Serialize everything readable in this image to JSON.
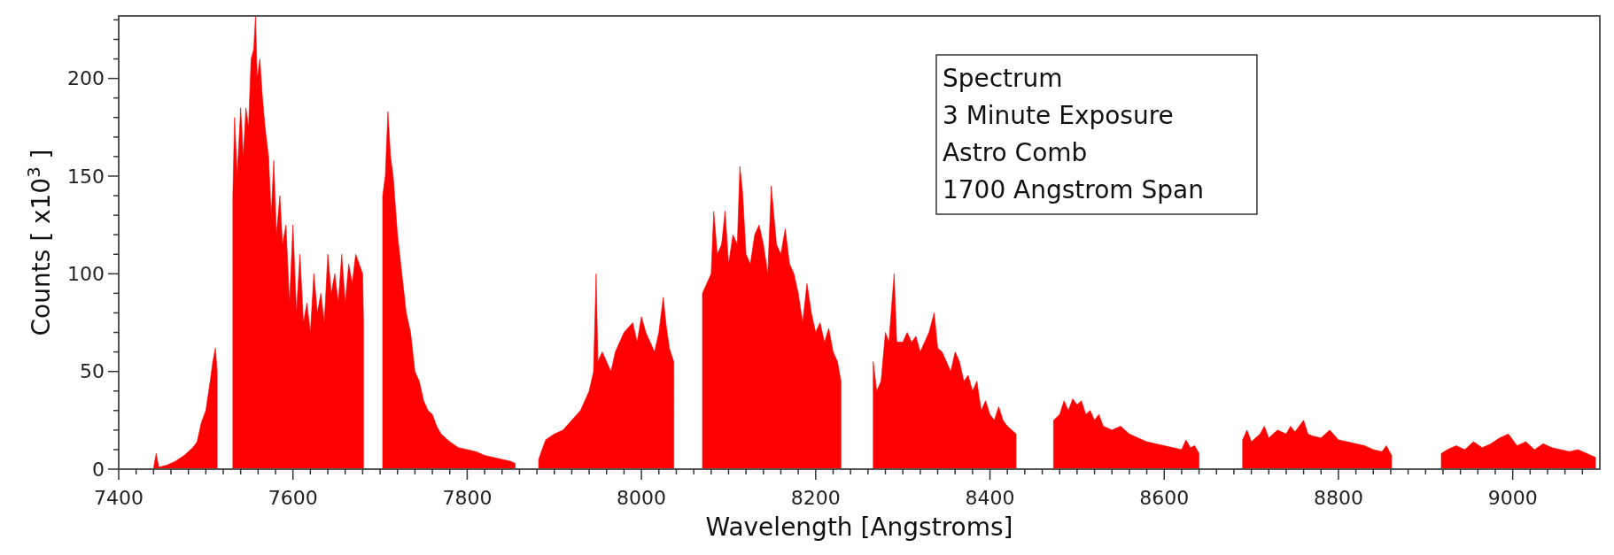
{
  "chart_data": {
    "type": "area",
    "xlabel": "Wavelength [Angstroms]",
    "ylabel": "Counts [ x10$^{3}$ ]",
    "annotations": [
      "Spectrum",
      "3 Minute Exposure",
      "Astro Comb",
      "1700 Angstrom Span"
    ],
    "xlim": [
      7400,
      9100
    ],
    "ylim": [
      0,
      232
    ],
    "xticks": [
      7400,
      {
        "value": 7420,
        "label": null
      },
      {
        "value": 7440,
        "label": null
      },
      {
        "value": 7460,
        "label": null
      },
      {
        "value": 7480,
        "label": null
      },
      {
        "value": 7500,
        "label": null
      },
      {
        "value": 7520,
        "label": null
      },
      {
        "value": 7540,
        "label": null
      },
      {
        "value": 7560,
        "label": null
      },
      {
        "value": 7580,
        "label": null
      },
      7600,
      {
        "value": 7620,
        "label": null
      },
      {
        "value": 7640,
        "label": null
      },
      {
        "value": 7660,
        "label": null
      },
      {
        "value": 7680,
        "label": null
      },
      {
        "value": 7700,
        "label": null
      },
      {
        "value": 7720,
        "label": null
      },
      {
        "value": 7740,
        "label": null
      },
      {
        "value": 7760,
        "label": null
      },
      {
        "value": 7780,
        "label": null
      },
      7800,
      {
        "value": 7820,
        "label": null
      },
      {
        "value": 7840,
        "label": null
      },
      {
        "value": 7860,
        "label": null
      },
      {
        "value": 7880,
        "label": null
      },
      {
        "value": 7900,
        "label": null
      },
      {
        "value": 7920,
        "label": null
      },
      {
        "value": 7940,
        "label": null
      },
      {
        "value": 7960,
        "label": null
      },
      {
        "value": 7980,
        "label": null
      },
      8000,
      {
        "value": 8020,
        "label": null
      },
      {
        "value": 8040,
        "label": null
      },
      {
        "value": 8060,
        "label": null
      },
      {
        "value": 8080,
        "label": null
      },
      {
        "value": 8100,
        "label": null
      },
      {
        "value": 8120,
        "label": null
      },
      {
        "value": 8140,
        "label": null
      },
      {
        "value": 8160,
        "label": null
      },
      {
        "value": 8180,
        "label": null
      },
      8200,
      {
        "value": 8220,
        "label": null
      },
      {
        "value": 8240,
        "label": null
      },
      {
        "value": 8260,
        "label": null
      },
      {
        "value": 8280,
        "label": null
      },
      {
        "value": 8300,
        "label": null
      },
      {
        "value": 8320,
        "label": null
      },
      {
        "value": 8340,
        "label": null
      },
      {
        "value": 8360,
        "label": null
      },
      {
        "value": 8380,
        "label": null
      },
      8400,
      {
        "value": 8420,
        "label": null
      },
      {
        "value": 8440,
        "label": null
      },
      {
        "value": 8460,
        "label": null
      },
      {
        "value": 8480,
        "label": null
      },
      {
        "value": 8500,
        "label": null
      },
      {
        "value": 8520,
        "label": null
      },
      {
        "value": 8540,
        "label": null
      },
      {
        "value": 8560,
        "label": null
      },
      {
        "value": 8580,
        "label": null
      },
      8600,
      {
        "value": 8620,
        "label": null
      },
      {
        "value": 8640,
        "label": null
      },
      {
        "value": 8660,
        "label": null
      },
      {
        "value": 8680,
        "label": null
      },
      {
        "value": 8700,
        "label": null
      },
      {
        "value": 8720,
        "label": null
      },
      {
        "value": 8740,
        "label": null
      },
      {
        "value": 8760,
        "label": null
      },
      {
        "value": 8780,
        "label": null
      },
      8800,
      {
        "value": 8820,
        "label": null
      },
      {
        "value": 8840,
        "label": null
      },
      {
        "value": 8860,
        "label": null
      },
      {
        "value": 8880,
        "label": null
      },
      {
        "value": 8900,
        "label": null
      },
      {
        "value": 8920,
        "label": null
      },
      {
        "value": 8940,
        "label": null
      },
      {
        "value": 8960,
        "label": null
      },
      {
        "value": 8980,
        "label": null
      },
      9000,
      {
        "value": 9020,
        "label": null
      },
      {
        "value": 9040,
        "label": null
      },
      {
        "value": 9060,
        "label": null
      },
      {
        "value": 9080,
        "label": null
      }
    ],
    "yticks": [
      0,
      {
        "value": 10,
        "label": null
      },
      {
        "value": 20,
        "label": null
      },
      {
        "value": 30,
        "label": null
      },
      {
        "value": 40,
        "label": null
      },
      50,
      {
        "value": 60,
        "label": null
      },
      {
        "value": 70,
        "label": null
      },
      {
        "value": 80,
        "label": null
      },
      {
        "value": 90,
        "label": null
      },
      100,
      {
        "value": 110,
        "label": null
      },
      {
        "value": 120,
        "label": null
      },
      {
        "value": 130,
        "label": null
      },
      {
        "value": 140,
        "label": null
      },
      150,
      {
        "value": 160,
        "label": null
      },
      {
        "value": 170,
        "label": null
      },
      {
        "value": 180,
        "label": null
      },
      {
        "value": 190,
        "label": null
      },
      200,
      {
        "value": 210,
        "label": null
      },
      {
        "value": 220,
        "label": null
      },
      {
        "value": 230,
        "label": null
      }
    ],
    "series": [
      {
        "color": "#ff0000",
        "x": [
          7440,
          7443,
          7446,
          7455,
          7465,
          7475,
          7485,
          7490,
          7495,
          7500,
          7505,
          7508,
          7511,
          7513,
          7522,
          7531,
          7533,
          7536,
          7540,
          7543,
          7546,
          7549,
          7552,
          7555,
          7557,
          7559,
          7562,
          7565,
          7568,
          7572,
          7575,
          7578,
          7581,
          7585,
          7588,
          7592,
          7596,
          7600,
          7604,
          7608,
          7612,
          7616,
          7620,
          7624,
          7628,
          7632,
          7636,
          7640,
          7644,
          7648,
          7652,
          7656,
          7660,
          7664,
          7668,
          7672,
          7676,
          7680,
          7681,
          7692,
          7703,
          7706,
          7709,
          7712,
          7715,
          7720,
          7725,
          7730,
          7735,
          7740,
          7745,
          7750,
          7755,
          7760,
          7765,
          7770,
          7780,
          7790,
          7800,
          7810,
          7820,
          7830,
          7840,
          7850,
          7855,
          7868,
          7882,
          7890,
          7900,
          7910,
          7920,
          7930,
          7940,
          7945,
          7948,
          7950,
          7955,
          7960,
          7965,
          7970,
          7980,
          7990,
          7995,
          8000,
          8005,
          8010,
          8015,
          8020,
          8025,
          8028,
          8032,
          8037,
          8054,
          8070,
          8075,
          8080,
          8083,
          8087,
          8092,
          8096,
          8100,
          8105,
          8110,
          8113,
          8116,
          8120,
          8125,
          8130,
          8135,
          8140,
          8145,
          8149,
          8155,
          8160,
          8165,
          8170,
          8175,
          8180,
          8185,
          8190,
          8195,
          8200,
          8205,
          8210,
          8215,
          8220,
          8225,
          8229,
          8248,
          8266,
          8270,
          8275,
          8280,
          8284,
          8290,
          8293,
          8300,
          8305,
          8310,
          8315,
          8320,
          8325,
          8330,
          8336,
          8340,
          8345,
          8350,
          8355,
          8360,
          8365,
          8370,
          8375,
          8380,
          8385,
          8390,
          8395,
          8400,
          8405,
          8410,
          8415,
          8420,
          8425,
          8430,
          8452,
          8473,
          8480,
          8485,
          8490,
          8495,
          8500,
          8505,
          8510,
          8515,
          8520,
          8525,
          8530,
          8540,
          8550,
          8560,
          8570,
          8580,
          8590,
          8600,
          8610,
          8620,
          8625,
          8630,
          8635,
          8640,
          8665,
          8690,
          8695,
          8700,
          8710,
          8715,
          8720,
          8730,
          8740,
          8745,
          8750,
          8760,
          8765,
          8770,
          8780,
          8790,
          8800,
          8810,
          8820,
          8830,
          8840,
          8850,
          8855,
          8861,
          8890,
          8918,
          8925,
          8935,
          8945,
          8955,
          8965,
          8975,
          8985,
          8995,
          9005,
          9015,
          9025,
          9035,
          9045,
          9055,
          9065,
          9075,
          9085,
          9095
        ],
        "values": [
          0.5,
          8,
          1,
          2,
          4,
          7,
          11,
          14,
          24,
          30,
          45,
          55,
          62,
          50,
          null,
          140,
          180,
          150,
          185,
          160,
          185,
          175,
          210,
          215,
          232,
          200,
          210,
          190,
          175,
          160,
          130,
          158,
          120,
          140,
          115,
          125,
          85,
          125,
          80,
          110,
          75,
          85,
          70,
          100,
          80,
          90,
          75,
          110,
          90,
          100,
          85,
          110,
          85,
          105,
          95,
          110,
          105,
          100,
          75,
          null,
          140,
          150,
          183,
          160,
          150,
          120,
          100,
          80,
          70,
          50,
          45,
          35,
          30,
          28,
          22,
          18,
          14,
          11,
          10,
          9,
          7,
          6,
          5,
          4,
          3,
          null,
          5,
          15,
          18,
          20,
          25,
          30,
          40,
          50,
          100,
          55,
          60,
          55,
          50,
          60,
          70,
          75,
          65,
          78,
          70,
          65,
          60,
          70,
          88,
          75,
          62,
          55,
          null,
          90,
          95,
          100,
          132,
          110,
          115,
          132,
          105,
          120,
          115,
          155,
          142,
          110,
          105,
          120,
          125,
          115,
          100,
          145,
          115,
          110,
          123,
          105,
          100,
          90,
          75,
          95,
          80,
          70,
          75,
          65,
          72,
          60,
          55,
          45,
          null,
          55,
          40,
          45,
          70,
          65,
          100,
          65,
          65,
          70,
          65,
          68,
          60,
          65,
          70,
          80,
          62,
          60,
          55,
          50,
          60,
          55,
          45,
          48,
          40,
          45,
          30,
          35,
          28,
          25,
          32,
          25,
          22,
          20,
          18,
          null,
          25,
          28,
          35,
          30,
          36,
          33,
          35,
          28,
          30,
          25,
          28,
          22,
          20,
          22,
          18,
          16,
          14,
          13,
          12,
          11,
          10,
          15,
          11,
          12,
          8,
          null,
          15,
          20,
          14,
          18,
          22,
          16,
          20,
          18,
          22,
          19,
          25,
          18,
          17,
          16,
          20,
          15,
          14,
          13,
          12,
          10,
          9,
          12,
          7,
          null,
          8,
          10,
          12,
          10,
          14,
          11,
          13,
          16,
          18,
          12,
          14,
          10,
          13,
          11,
          10,
          9,
          10,
          8,
          6
        ]
      }
    ]
  }
}
